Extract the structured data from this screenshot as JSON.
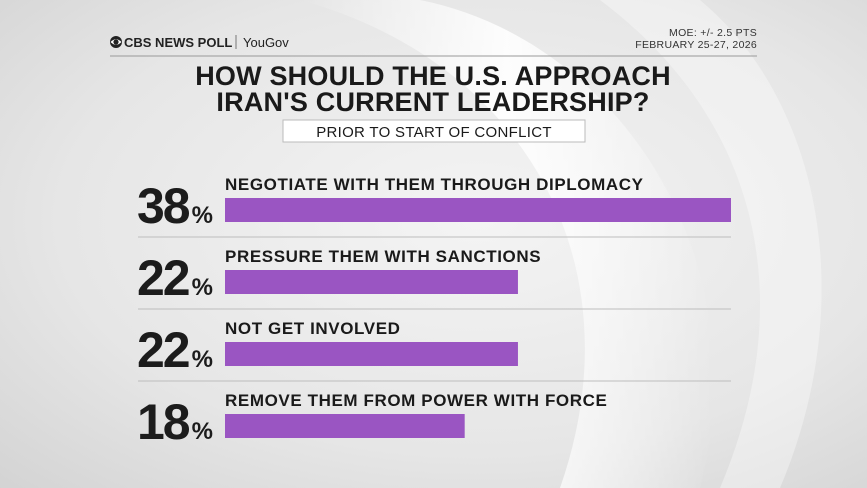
{
  "header": {
    "brand": "CBS NEWS POLL",
    "partner": "YouGov",
    "moe": "MOE: +/- 2.5 PTS",
    "dates": "FEBRUARY 25-27, 2026"
  },
  "chart_data": {
    "type": "bar",
    "orientation": "horizontal",
    "title": [
      "HOW SHOULD THE U.S. APPROACH",
      "IRAN'S CURRENT LEADERSHIP?"
    ],
    "subtitle": "PRIOR TO START OF CONFLICT",
    "categories": [
      "NEGOTIATE WITH THEM THROUGH DIPLOMACY",
      "PRESSURE THEM WITH SANCTIONS",
      "NOT GET INVOLVED",
      "REMOVE THEM FROM POWER WITH FORCE"
    ],
    "values": [
      38,
      22,
      22,
      18
    ],
    "value_labels": [
      "38%",
      "22%",
      "22%",
      "18%"
    ],
    "color": "#9a55c2"
  }
}
